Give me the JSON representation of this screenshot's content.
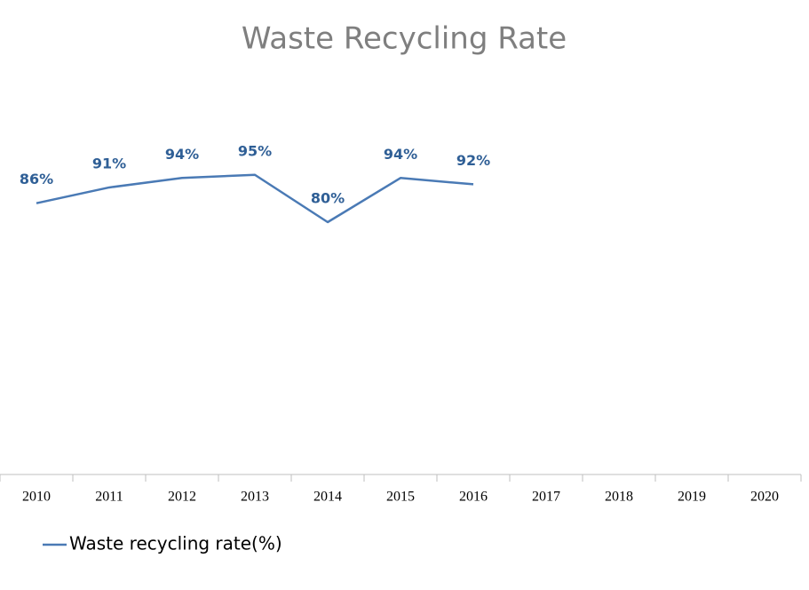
{
  "chart_data": {
    "type": "line",
    "title": "Waste Recycling Rate",
    "categories": [
      "2010",
      "2011",
      "2012",
      "2013",
      "2014",
      "2015",
      "2016",
      "2017",
      "2018",
      "2019",
      "2020"
    ],
    "series": [
      {
        "name": "Waste recycling rate(%)",
        "color": "#4a7ab5",
        "values": [
          86,
          91,
          94,
          95,
          80,
          94,
          92,
          null,
          null,
          null,
          null
        ],
        "value_labels": [
          "86%",
          "91%",
          "94%",
          "95%",
          "80%",
          "94%",
          "92%",
          null,
          null,
          null,
          null
        ]
      }
    ],
    "ylim": [
      0,
      100
    ],
    "legend": "bottom-left"
  }
}
